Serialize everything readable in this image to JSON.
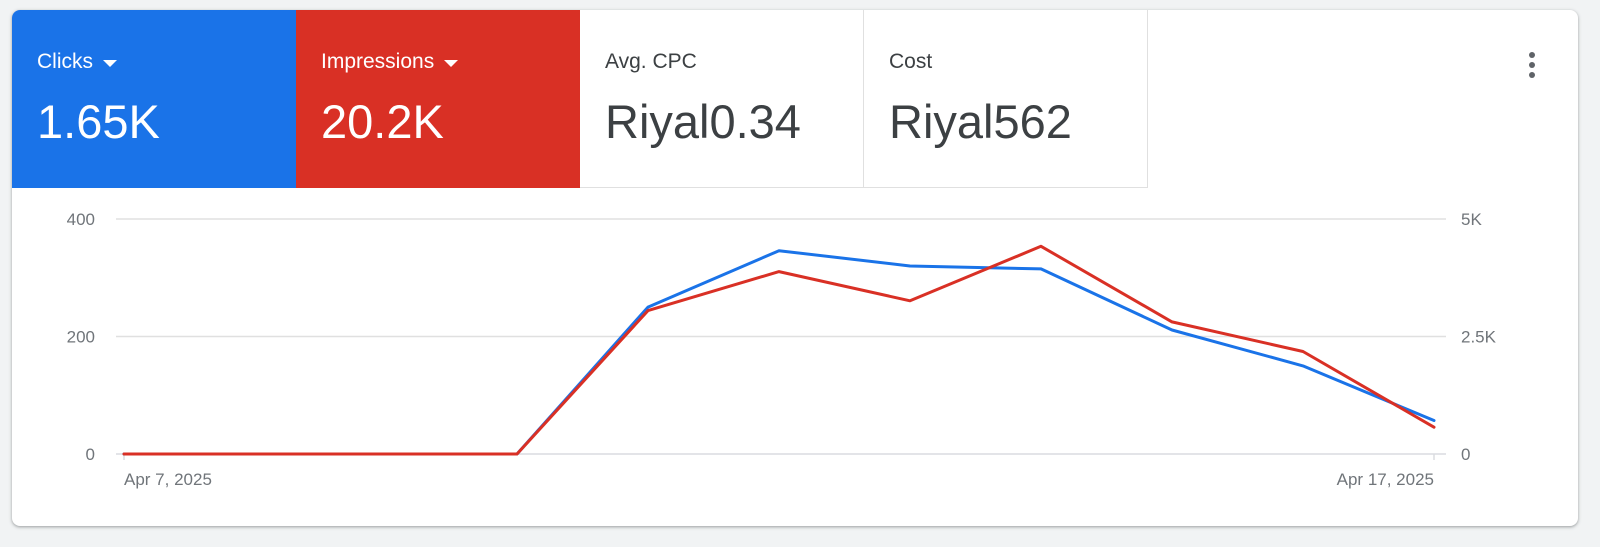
{
  "tiles": [
    {
      "label": "Clicks",
      "value": "1.65K",
      "color": "#1a73e8"
    },
    {
      "label": "Impressions",
      "value": "20.2K",
      "color": "#d93025"
    },
    {
      "label": "Avg. CPC",
      "value": "Riyal0.34"
    },
    {
      "label": "Cost",
      "value": "Riyal562"
    }
  ],
  "menu_icon": "more-vert-icon",
  "chart_data": {
    "type": "line",
    "x": [
      "Apr 7, 2025",
      "Apr 8, 2025",
      "Apr 9, 2025",
      "Apr 10, 2025",
      "Apr 11, 2025",
      "Apr 12, 2025",
      "Apr 13, 2025",
      "Apr 14, 2025",
      "Apr 15, 2025",
      "Apr 16, 2025",
      "Apr 17, 2025"
    ],
    "x_tick_labels": [
      "Apr 7, 2025",
      "Apr 17, 2025"
    ],
    "series": [
      {
        "name": "Clicks",
        "axis": "left",
        "color": "#1a73e8",
        "values": [
          0,
          0,
          0,
          0,
          250,
          346,
          320,
          315,
          211,
          150,
          57
        ]
      },
      {
        "name": "Impressions",
        "axis": "right",
        "color": "#d93025",
        "values": [
          0,
          0,
          0,
          0,
          3050,
          3880,
          3260,
          4420,
          2810,
          2180,
          570
        ]
      }
    ],
    "y_left": {
      "ticks": [
        "0",
        "200",
        "400"
      ],
      "tick_values": [
        0,
        200,
        400
      ],
      "ylim": [
        0,
        400
      ]
    },
    "y_right": {
      "ticks": [
        "0",
        "2.5K",
        "5K"
      ],
      "tick_values": [
        0,
        2500,
        5000
      ],
      "ylim": [
        0,
        5000
      ]
    },
    "grid": true,
    "grid_color": "#e0e0e0"
  }
}
